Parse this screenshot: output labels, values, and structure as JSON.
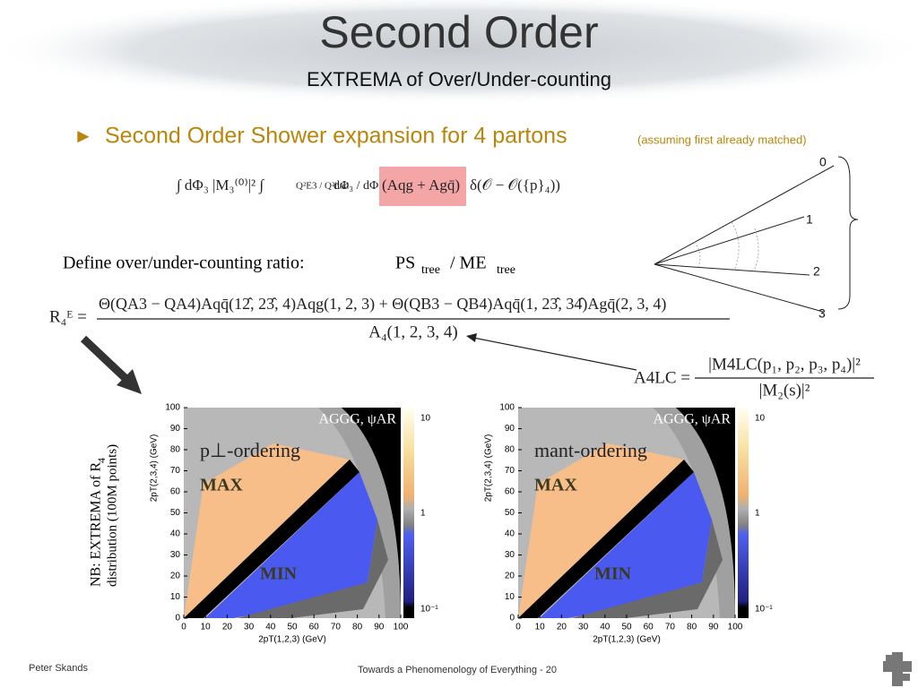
{
  "header": {
    "title": "Second Order",
    "subtitle": "EXTREMA of Over/Under-counting"
  },
  "bullet": {
    "marker": "►",
    "text": "Second Order Shower expansion for 4 partons",
    "note": "(assuming first already matched)"
  },
  "formula_shower": {
    "integral": "∫ dΦ₃ |M₃⁽⁰⁾|² ∫",
    "limits": "Q²E3 / Q²had",
    "ratio": "dΦ₃ / dΦ₂",
    "highlight": "(Aqg + Agq̄)",
    "rest": "δ(𝒪 − 𝒪({p}₄))"
  },
  "define": {
    "text": "Define over/under-counting ratio:",
    "ps": "PS",
    "ps_sub": "tree",
    "slash": "/ ME",
    "me_sub": "tree"
  },
  "formula_ratio": {
    "lhs": "R₄ᴱ =",
    "numerator": "Θ(QA3 − QA4)Aqq̄(12̂, 23̂, 4)Aqg(1, 2, 3) + Θ(QB3 − QB4)Aqq̄(1, 23̂, 34̂)Agq̄(2, 3, 4)",
    "denominator": "A₄(1, 2, 3, 4)"
  },
  "formula_lc": {
    "lhs": "A4LC =",
    "numerator": "|M4LC(p₁, p₂, p₃, p₄)|²",
    "denominator": "|M₂(s)|²"
  },
  "diagram": {
    "labels": [
      "0",
      "1",
      "2",
      "3"
    ]
  },
  "side_note": {
    "line1": "NB: EXTREMA of R",
    "sub": "4",
    "line2": "distribution (100M points)"
  },
  "plots": [
    {
      "title": "p⊥-ordering",
      "legend": "AGGG, ψAR",
      "max": "MAX",
      "min": "MIN",
      "xlabel": "2pT(1,2,3) (GeV)",
      "ylabel": "2pT(2,3,4) (GeV)",
      "xticks": [
        0,
        10,
        20,
        30,
        40,
        50,
        60,
        70,
        80,
        90,
        100
      ],
      "yticks": [
        0,
        10,
        20,
        30,
        40,
        50,
        60,
        70,
        80,
        90,
        100
      ],
      "colorbar": [
        "10",
        "1",
        "10⁻¹"
      ]
    },
    {
      "title": "mant-ordering",
      "legend": "AGGG, ψAR",
      "max": "MAX",
      "min": "MIN",
      "xlabel": "2pT(1,2,3) (GeV)",
      "ylabel": "2pT(2,3,4) (GeV)",
      "xticks": [
        0,
        10,
        20,
        30,
        40,
        50,
        60,
        70,
        80,
        90,
        100
      ],
      "yticks": [
        0,
        10,
        20,
        30,
        40,
        50,
        60,
        70,
        80,
        90,
        100
      ],
      "colorbar": [
        "10",
        "1",
        "10⁻¹"
      ]
    }
  ],
  "footer": {
    "author": "Peter Skands",
    "talk": "Towards a Phenomenology of Everything - 20"
  }
}
